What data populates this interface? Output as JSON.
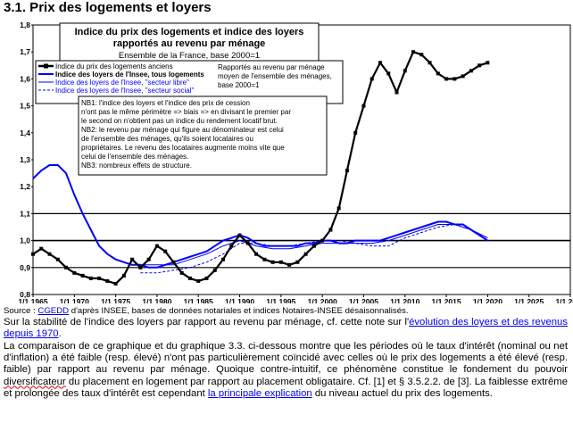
{
  "heading": "3.1. Prix des logements et loyers",
  "colors": {
    "black_series": "#000000",
    "blue_series": "#0000ff",
    "frame": "#000000"
  },
  "chart_data": {
    "type": "line",
    "title_lines": [
      "Indice du prix des logements et indice des loyers",
      "rapportés au revenu par ménage"
    ],
    "subtitle": "Ensemble de la France, base 2000=1",
    "ylim": [
      0.8,
      1.8
    ],
    "y_ticks": [
      "0,8",
      "0,9",
      "1,0",
      "1,1",
      "1,2",
      "1,3",
      "1,4",
      "1,5",
      "1,6",
      "1,7",
      "1,8"
    ],
    "x_ticks": [
      "1/1 1965",
      "1/1 1970",
      "1/1 1975",
      "1/1 1980",
      "1/1 1985",
      "1/1 1990",
      "1/1 1995",
      "1/1 2000",
      "1/1 2005",
      "1/1 2010",
      "1/1 2015",
      "1/1 2020",
      "1/1 2025",
      "1/1 2030"
    ],
    "xlim": [
      1965,
      2030
    ],
    "legend": [
      "Indice du prix des logements anciens",
      "Indice des loyers de l'Insee, tous logements",
      "Indice des loyers de l'Insee, \"secteur libre\"",
      "Indice des loyers de l'Insee, \"secteur social\""
    ],
    "legend_note": [
      "Rapportés au revenu par ménage",
      "moyen de l'ensemble des ménages,",
      "base 2000=1"
    ],
    "notes": [
      "NB1: l'indice des loyers et l'indice des prix de cession",
      "n'ont pas le même périmètre => biais => en divisant le premier par",
      "le second on n'obtient pas un indice du rendement locatif brut.",
      "NB2: le revenu par ménage qui figure au dénominateur est celui",
      "de l'ensemble des ménages, qu'ils soient locataires ou",
      "propriétaires.  Le revenu des locataires augmente moins vite que",
      "celui de l'ensemble des ménages.",
      "NB3: nombreux effets de structure."
    ],
    "reference_lines": [
      0.9,
      1.0,
      1.1
    ],
    "series": [
      {
        "name": "Indice du prix des logements anciens",
        "style": "black-marker",
        "x": [
          1965,
          1966,
          1967,
          1968,
          1969,
          1970,
          1971,
          1972,
          1973,
          1974,
          1975,
          1976,
          1977,
          1978,
          1979,
          1980,
          1981,
          1982,
          1983,
          1984,
          1985,
          1986,
          1987,
          1988,
          1989,
          1990,
          1991,
          1992,
          1993,
          1994,
          1995,
          1996,
          1997,
          1998,
          1999,
          2000,
          2001,
          2002,
          2003,
          2004,
          2005,
          2006,
          2007,
          2008,
          2009,
          2010,
          2011,
          2012,
          2013,
          2014,
          2015,
          2016,
          2017,
          2018,
          2019,
          2020
        ],
        "y": [
          0.95,
          0.97,
          0.95,
          0.93,
          0.9,
          0.88,
          0.87,
          0.86,
          0.86,
          0.85,
          0.84,
          0.87,
          0.93,
          0.9,
          0.93,
          0.98,
          0.96,
          0.92,
          0.88,
          0.86,
          0.85,
          0.86,
          0.89,
          0.93,
          0.98,
          1.02,
          0.99,
          0.95,
          0.93,
          0.92,
          0.92,
          0.91,
          0.92,
          0.95,
          0.98,
          1.0,
          1.04,
          1.12,
          1.26,
          1.4,
          1.5,
          1.6,
          1.66,
          1.62,
          1.55,
          1.63,
          1.7,
          1.69,
          1.66,
          1.62,
          1.6,
          1.6,
          1.61,
          1.63,
          1.65,
          1.66
        ]
      },
      {
        "name": "Indice des loyers de l'Insee, tous logements",
        "style": "blue-thick",
        "x": [
          1965,
          1966,
          1967,
          1968,
          1969,
          1970,
          1971,
          1972,
          1973,
          1974,
          1975,
          1976,
          1977,
          1978,
          1979,
          1980,
          1981,
          1982,
          1983,
          1984,
          1985,
          1986,
          1987,
          1988,
          1989,
          1990,
          1991,
          1992,
          1993,
          1994,
          1995,
          1996,
          1997,
          1998,
          1999,
          2000,
          2001,
          2002,
          2003,
          2004,
          2005,
          2006,
          2007,
          2008,
          2009,
          2010,
          2011,
          2012,
          2013,
          2014,
          2015,
          2016,
          2017,
          2018,
          2019,
          2020
        ],
        "y": [
          1.23,
          1.26,
          1.28,
          1.28,
          1.25,
          1.17,
          1.1,
          1.04,
          0.98,
          0.95,
          0.93,
          0.92,
          0.91,
          0.91,
          0.9,
          0.9,
          0.91,
          0.92,
          0.93,
          0.94,
          0.95,
          0.96,
          0.98,
          1.0,
          1.01,
          1.02,
          1.01,
          0.99,
          0.98,
          0.98,
          0.98,
          0.98,
          0.98,
          0.99,
          0.99,
          1.0,
          1.0,
          0.99,
          0.99,
          1.0,
          1.0,
          1.0,
          1.0,
          1.01,
          1.02,
          1.03,
          1.04,
          1.05,
          1.06,
          1.07,
          1.07,
          1.06,
          1.06,
          1.04,
          1.02,
          1.0
        ]
      },
      {
        "name": "Indice des loyers de l'Insee, \"secteur libre\"",
        "style": "blue-thin",
        "x": [
          1978,
          1980,
          1982,
          1984,
          1986,
          1988,
          1990,
          1992,
          1994,
          1996,
          1998,
          2000,
          2002,
          2004,
          2006,
          2008,
          2010,
          2012,
          2014,
          2016,
          2018,
          2020
        ],
        "y": [
          0.91,
          0.91,
          0.91,
          0.93,
          0.95,
          0.98,
          1.0,
          0.98,
          0.97,
          0.97,
          0.98,
          0.99,
          0.99,
          0.99,
          0.99,
          1.0,
          1.02,
          1.04,
          1.06,
          1.06,
          1.04,
          1.01
        ]
      },
      {
        "name": "Indice des loyers de l'Insee, \"secteur social\"",
        "style": "blue-dashed",
        "x": [
          1978,
          1980,
          1982,
          1984,
          1986,
          1988,
          1990,
          1992,
          1994,
          1996,
          1998,
          2000,
          2002,
          2004,
          2006,
          2008,
          2010,
          2012,
          2014,
          2016,
          2018,
          2020
        ],
        "y": [
          0.88,
          0.88,
          0.89,
          0.9,
          0.92,
          0.95,
          0.99,
          0.99,
          0.98,
          0.98,
          0.99,
          1.0,
          1.0,
          0.99,
          0.98,
          0.98,
          1.01,
          1.03,
          1.05,
          1.06,
          1.04,
          1.01
        ]
      }
    ]
  },
  "source": {
    "prefix": "Source : ",
    "link": "CGEDD",
    "rest": " d'après INSEE, bases de données notariales et indices Notaires-INSEE désaisonnalisés."
  },
  "p1": {
    "text": "Sur la stabilité de l'indice des loyers par rapport au revenu par ménage, cf. cette note sur l'",
    "link": "évolution des loyers et des revenus depuis 1970",
    "end": "."
  },
  "p2": {
    "a": "La comparaison de ce graphique et du graphique 3.3. ci-dessous montre que les périodes où le taux d'intérêt (nominal ou net d'inflation) a été faible (resp. élevé) n'ont pas particulièrement coïncidé avec celles où le prix des logements a été élevé (resp. faible) par rapport au revenu par ménage.  Quoique contre-intuitif, ce phénomène constitue le fondement du pouvoir ",
    "squig": "diversificateur",
    "b": " du placement en logement par rapport au placement obligataire.  Cf. [1] et § 3.5.2.2. de [3].  La faiblesse extrême et prolongée des taux d'intérêt est cependant ",
    "link": "la principale explication",
    "c": " du niveau actuel du prix des logements."
  }
}
